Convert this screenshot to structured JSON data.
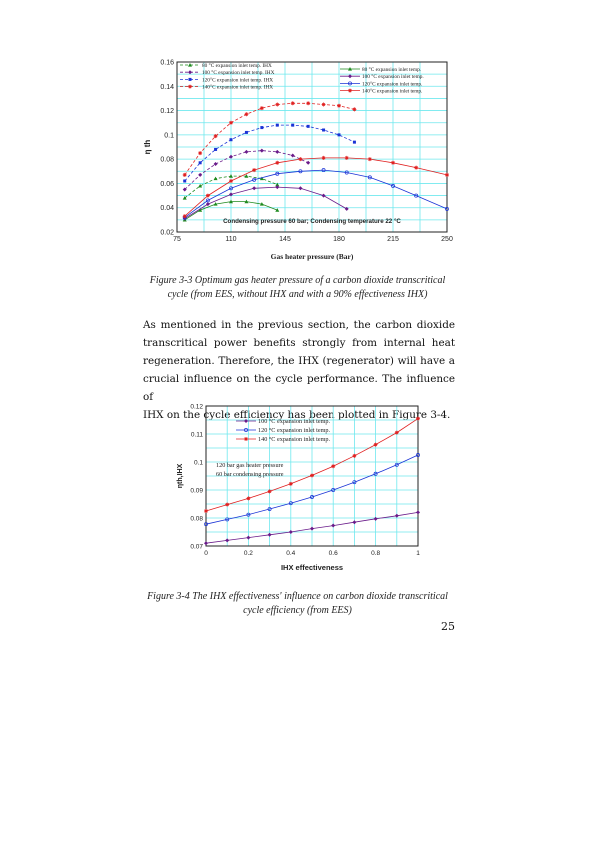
{
  "figure1": {
    "caption_lines": [
      "Figure 3-3 Optimum gas heater pressure of a carbon dioxide transcritical",
      "cycle (from EES, without IHX and with a 90% effectiveness IHX)"
    ],
    "chart_data": {
      "type": "line",
      "xlabel": "Gas heater pressure (Bar)",
      "ylabel": "η th",
      "xlim": [
        75,
        250
      ],
      "ylim": [
        0.02,
        0.16
      ],
      "xticks": [
        "75",
        "110",
        "145",
        "180",
        "215",
        "250"
      ],
      "yticks": [
        "0.02",
        "0.04",
        "0.06",
        "0.08",
        "0.1",
        "0.12",
        "0.14",
        "0.16"
      ],
      "annotation": "Condensing pressure 60 bar; Condensing temperature 22 °C",
      "grid": true,
      "legend_left_position": "top-left",
      "legend_right_position": "top-right",
      "series": [
        {
          "name": "80 °C expansion inlet temp. IHX",
          "color": "#1e8a1e",
          "style": "dashed",
          "marker": "triangle",
          "x": [
            80,
            90,
            100,
            110,
            120,
            130,
            140
          ],
          "y": [
            0.048,
            0.058,
            0.064,
            0.066,
            0.066,
            0.064,
            0.059
          ]
        },
        {
          "name": "100 °C expansion inlet temp. IHX",
          "color": "#6a1b8a",
          "style": "dashed",
          "marker": "diamond",
          "x": [
            80,
            90,
            100,
            110,
            120,
            130,
            140,
            150,
            160
          ],
          "y": [
            0.055,
            0.067,
            0.076,
            0.082,
            0.086,
            0.087,
            0.086,
            0.083,
            0.077
          ]
        },
        {
          "name": "120°C expansion inlet temp. IHX",
          "color": "#1a33d6",
          "style": "dashed",
          "marker": "square",
          "x": [
            80,
            90,
            100,
            110,
            120,
            130,
            140,
            150,
            160,
            170,
            180,
            190
          ],
          "y": [
            0.062,
            0.077,
            0.088,
            0.096,
            0.102,
            0.106,
            0.108,
            0.108,
            0.107,
            0.104,
            0.1,
            0.094
          ]
        },
        {
          "name": "140°C expansion inlet temp. IHX",
          "color": "#e02020",
          "style": "dashed",
          "marker": "star",
          "x": [
            80,
            90,
            100,
            110,
            120,
            130,
            140,
            150,
            160,
            170,
            180,
            190
          ],
          "y": [
            0.067,
            0.085,
            0.099,
            0.11,
            0.117,
            0.122,
            0.125,
            0.126,
            0.126,
            0.125,
            0.124,
            0.121
          ]
        },
        {
          "name": "80 °C expansion inlet temp.",
          "color": "#1e8a1e",
          "style": "solid",
          "marker": "triangle",
          "x": [
            80,
            90,
            100,
            110,
            120,
            130,
            140
          ],
          "y": [
            0.03,
            0.038,
            0.043,
            0.045,
            0.045,
            0.043,
            0.038
          ]
        },
        {
          "name": "100 °C expansion inlet temp.",
          "color": "#6a1b8a",
          "style": "solid",
          "marker": "diamond",
          "x": [
            80,
            95,
            110,
            125,
            140,
            155,
            170,
            185
          ],
          "y": [
            0.031,
            0.043,
            0.051,
            0.056,
            0.057,
            0.056,
            0.05,
            0.039
          ]
        },
        {
          "name": "120°C expansion inlet temp.",
          "color": "#1a33d6",
          "style": "solid",
          "marker": "circle",
          "x": [
            80,
            95,
            110,
            125,
            140,
            155,
            170,
            185,
            200,
            215,
            230,
            250
          ],
          "y": [
            0.032,
            0.046,
            0.056,
            0.063,
            0.068,
            0.07,
            0.071,
            0.069,
            0.065,
            0.058,
            0.05,
            0.039
          ]
        },
        {
          "name": "140°C expansion inlet temp.",
          "color": "#e02020",
          "style": "solid",
          "marker": "star",
          "x": [
            80,
            95,
            110,
            125,
            140,
            155,
            170,
            185,
            200,
            215,
            230,
            250
          ],
          "y": [
            0.033,
            0.05,
            0.062,
            0.071,
            0.077,
            0.08,
            0.081,
            0.081,
            0.08,
            0.077,
            0.073,
            0.067
          ]
        }
      ]
    }
  },
  "paragraph_lines": [
    "As mentioned in the previous section, the carbon dioxide",
    "transcritical power benefits strongly from internal heat",
    "regeneration. Therefore, the IHX (regenerator) will have a",
    "crucial influence on the cycle performance. The influence of",
    "IHX on the cycle efficiency has been plotted in Figure 3-4."
  ],
  "figure2": {
    "caption_lines": [
      "Figure 3-4 The IHX effectiveness' influence on carbon dioxide transcritical",
      "cycle efficiency (from EES)"
    ],
    "chart_data": {
      "type": "line",
      "xlabel": "IHX effectiveness",
      "ylabel": "ηth,IHX",
      "xlim": [
        0,
        1
      ],
      "ylim": [
        0.07,
        0.12
      ],
      "xticks": [
        "0",
        "0.2",
        "0.4",
        "0.6",
        "0.8",
        "1"
      ],
      "yticks": [
        "0.07",
        "0.08",
        "0.09",
        "0.1",
        "0.11",
        "0.12"
      ],
      "annotation_lines": [
        "120 bar gas heater pressure",
        "60 bar condensing pressure"
      ],
      "grid": true,
      "legend_position": "top-left",
      "series": [
        {
          "name": "100 °C expansion inlet temp.",
          "color": "#6a1b8a",
          "marker": "diamond",
          "x": [
            0,
            0.1,
            0.2,
            0.3,
            0.4,
            0.5,
            0.6,
            0.7,
            0.8,
            0.9,
            1.0
          ],
          "y": [
            0.071,
            0.072,
            0.073,
            0.074,
            0.075,
            0.0762,
            0.0773,
            0.0785,
            0.0797,
            0.0808,
            0.082
          ]
        },
        {
          "name": "120 °C expansion inlet temp.",
          "color": "#1a33d6",
          "marker": "circle",
          "x": [
            0,
            0.1,
            0.2,
            0.3,
            0.4,
            0.5,
            0.6,
            0.7,
            0.8,
            0.9,
            1.0
          ],
          "y": [
            0.0778,
            0.0795,
            0.0812,
            0.0832,
            0.0853,
            0.0875,
            0.09,
            0.0928,
            0.0958,
            0.099,
            0.1025
          ]
        },
        {
          "name": "140 °C expansion inlet temp.",
          "color": "#e02020",
          "marker": "star",
          "x": [
            0,
            0.1,
            0.2,
            0.3,
            0.4,
            0.5,
            0.6,
            0.7,
            0.8,
            0.9,
            1.0
          ],
          "y": [
            0.0825,
            0.0848,
            0.087,
            0.0895,
            0.0922,
            0.0952,
            0.0985,
            0.1022,
            0.1062,
            0.1105,
            0.1155
          ]
        }
      ]
    }
  },
  "page_number": "25"
}
